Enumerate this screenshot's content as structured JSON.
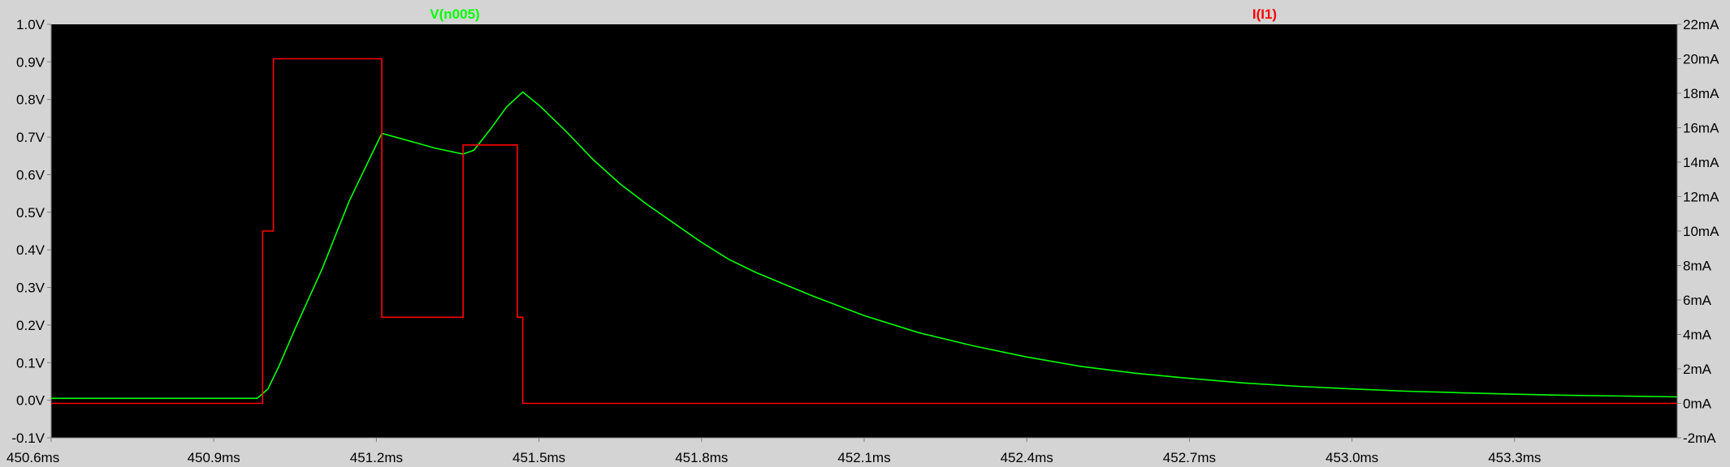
{
  "chart_data": {
    "type": "line",
    "colors": {
      "panel_bg": "#d4d4d4",
      "plot_bg": "#000000",
      "axis_text": "#000000",
      "grid": "#808080"
    },
    "xlim": [
      450.6,
      453.6
    ],
    "x_ticks": [
      {
        "value": 450.6,
        "label": "450.6ms"
      },
      {
        "value": 450.9,
        "label": "450.9ms"
      },
      {
        "value": 451.2,
        "label": "451.2ms"
      },
      {
        "value": 451.5,
        "label": "451.5ms"
      },
      {
        "value": 451.8,
        "label": "451.8ms"
      },
      {
        "value": 452.1,
        "label": "452.1ms"
      },
      {
        "value": 452.4,
        "label": "452.4ms"
      },
      {
        "value": 452.7,
        "label": "452.7ms"
      },
      {
        "value": 453.0,
        "label": "453.0ms"
      },
      {
        "value": 453.3,
        "label": "453.3ms"
      }
    ],
    "left_axis": {
      "ylim": [
        -0.1,
        1.0
      ],
      "ticks": [
        {
          "value": 1.0,
          "label": "1.0V"
        },
        {
          "value": 0.9,
          "label": "0.9V"
        },
        {
          "value": 0.8,
          "label": "0.8V"
        },
        {
          "value": 0.7,
          "label": "0.7V"
        },
        {
          "value": 0.6,
          "label": "0.6V"
        },
        {
          "value": 0.5,
          "label": "0.5V"
        },
        {
          "value": 0.4,
          "label": "0.4V"
        },
        {
          "value": 0.3,
          "label": "0.3V"
        },
        {
          "value": 0.2,
          "label": "0.2V"
        },
        {
          "value": 0.1,
          "label": "0.1V"
        },
        {
          "value": 0.0,
          "label": "0.0V"
        },
        {
          "value": -0.1,
          "label": "-0.1V"
        }
      ]
    },
    "right_axis": {
      "ylim": [
        -2,
        22
      ],
      "ticks": [
        {
          "value": 22,
          "label": "22mA"
        },
        {
          "value": 20,
          "label": "20mA"
        },
        {
          "value": 18,
          "label": "18mA"
        },
        {
          "value": 16,
          "label": "16mA"
        },
        {
          "value": 14,
          "label": "14mA"
        },
        {
          "value": 12,
          "label": "12mA"
        },
        {
          "value": 10,
          "label": "10mA"
        },
        {
          "value": 8,
          "label": "8mA"
        },
        {
          "value": 6,
          "label": "6mA"
        },
        {
          "value": 4,
          "label": "4mA"
        },
        {
          "value": 2,
          "label": "2mA"
        },
        {
          "value": 0,
          "label": "0mA"
        },
        {
          "value": -2,
          "label": "-2mA"
        }
      ]
    },
    "series": [
      {
        "name": "V(n005)",
        "axis": "left",
        "color": "#00ff00",
        "x": [
          450.6,
          450.98,
          451.0,
          451.02,
          451.05,
          451.1,
          451.15,
          451.21,
          451.26,
          451.31,
          451.36,
          451.38,
          451.41,
          451.44,
          451.47,
          451.5,
          451.55,
          451.6,
          451.65,
          451.7,
          451.75,
          451.8,
          451.85,
          451.9,
          451.95,
          452.0,
          452.1,
          452.2,
          452.3,
          452.4,
          452.5,
          452.6,
          452.7,
          452.8,
          452.9,
          453.0,
          453.1,
          453.2,
          453.3,
          453.4,
          453.5,
          453.6
        ],
        "y": [
          0.005,
          0.005,
          0.03,
          0.09,
          0.19,
          0.35,
          0.53,
          0.71,
          0.69,
          0.67,
          0.655,
          0.665,
          0.72,
          0.78,
          0.82,
          0.785,
          0.715,
          0.64,
          0.575,
          0.52,
          0.47,
          0.42,
          0.375,
          0.34,
          0.31,
          0.28,
          0.225,
          0.18,
          0.145,
          0.115,
          0.09,
          0.072,
          0.058,
          0.046,
          0.037,
          0.03,
          0.024,
          0.02,
          0.016,
          0.013,
          0.011,
          0.009
        ]
      },
      {
        "name": "I(I1)",
        "axis": "right",
        "color": "#ff0000",
        "step": "post",
        "x": [
          450.6,
          450.99,
          451.01,
          451.21,
          451.36,
          451.46,
          451.47,
          451.6,
          453.6
        ],
        "y": [
          0,
          10,
          20,
          5,
          15,
          5,
          0,
          0,
          0
        ]
      }
    ],
    "legend": {
      "placement": "top"
    },
    "grid": false
  }
}
